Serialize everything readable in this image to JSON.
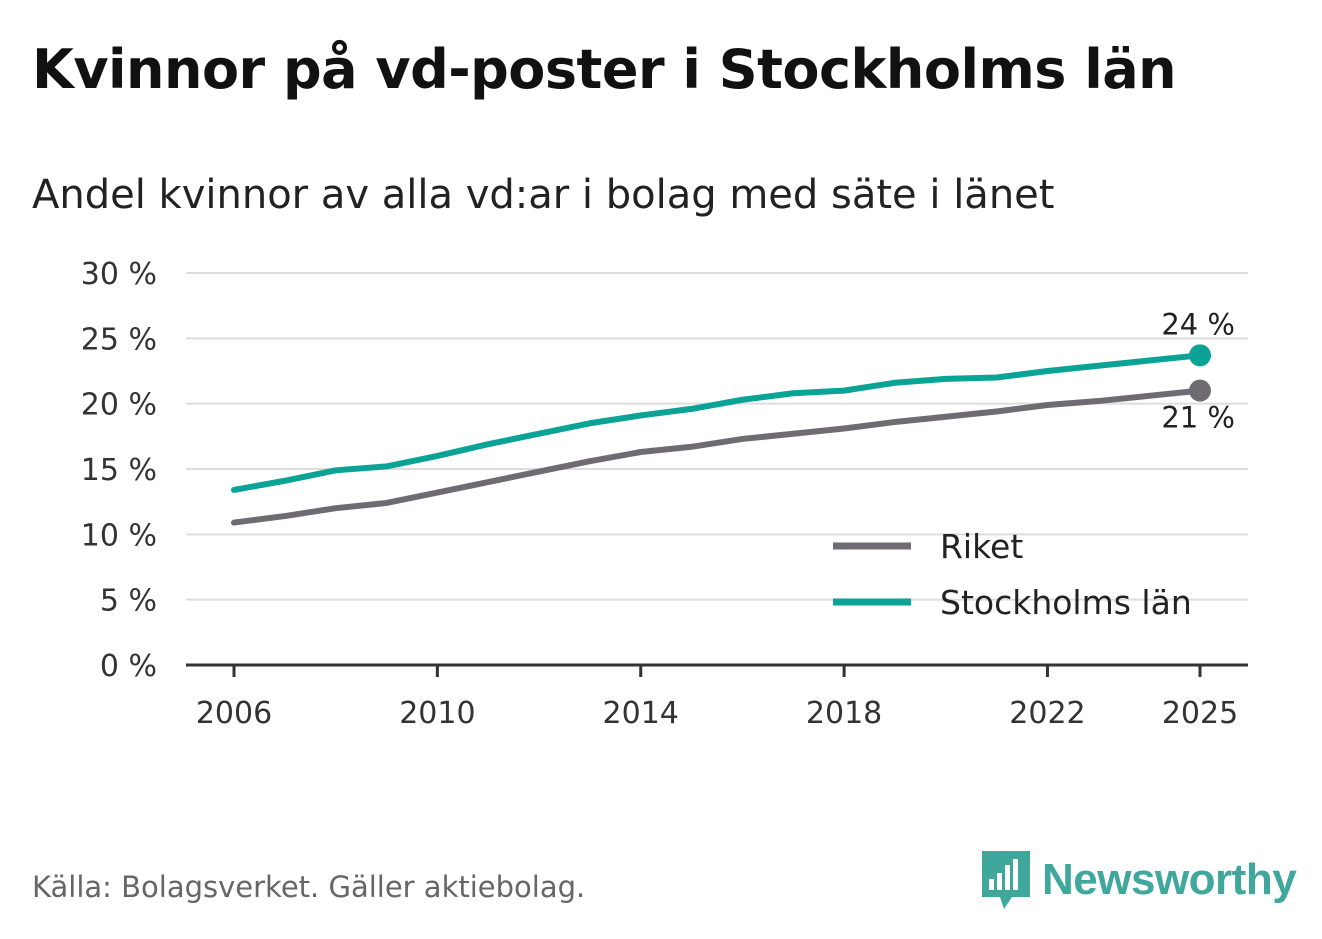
{
  "header": {
    "title": "Kvinnor på vd-poster i Stockholms län",
    "subtitle": "Andel kvinnor av alla vd:ar i bolag med säte i länet"
  },
  "footer": {
    "source": "Källa: Bolagsverket. Gäller aktiebolag.",
    "brand": "Newsworthy"
  },
  "colors": {
    "riket": "#6e6c72",
    "stockholm": "#0aa396",
    "grid": "#dddddd",
    "axis": "#333333",
    "brand": "#3fa79b"
  },
  "chart_data": {
    "type": "line",
    "title": "Kvinnor på vd-poster i Stockholms län",
    "subtitle": "Andel kvinnor av alla vd:ar i bolag med säte i länet",
    "xlabel": "",
    "ylabel": "",
    "x": [
      2006,
      2007,
      2008,
      2009,
      2010,
      2011,
      2012,
      2013,
      2014,
      2015,
      2016,
      2017,
      2018,
      2019,
      2020,
      2021,
      2022,
      2023,
      2024,
      2025
    ],
    "xticks": [
      2006,
      2010,
      2014,
      2018,
      2022,
      2025
    ],
    "xtick_labels": [
      "2006",
      "2010",
      "2014",
      "2018",
      "2022",
      "2025"
    ],
    "ylim": [
      0,
      30
    ],
    "yticks": [
      0,
      5,
      10,
      15,
      20,
      25,
      30
    ],
    "ytick_labels": [
      "0 %",
      "5 %",
      "10 %",
      "15 %",
      "20 %",
      "25 %",
      "30 %"
    ],
    "grid": true,
    "legend_position": "bottom-right",
    "series": [
      {
        "name": "Riket",
        "color_key": "riket",
        "values": [
          10.9,
          11.4,
          12.0,
          12.4,
          13.2,
          14.0,
          14.8,
          15.6,
          16.3,
          16.7,
          17.3,
          17.7,
          18.1,
          18.6,
          19.0,
          19.4,
          19.9,
          20.2,
          20.6,
          21.0
        ],
        "end_label": "21 %"
      },
      {
        "name": "Stockholms län",
        "color_key": "stockholm",
        "values": [
          13.4,
          14.1,
          14.9,
          15.2,
          16.0,
          16.9,
          17.7,
          18.5,
          19.1,
          19.6,
          20.3,
          20.8,
          21.0,
          21.6,
          21.9,
          22.0,
          22.5,
          22.9,
          23.3,
          23.7
        ],
        "end_label": "24 %"
      }
    ]
  }
}
